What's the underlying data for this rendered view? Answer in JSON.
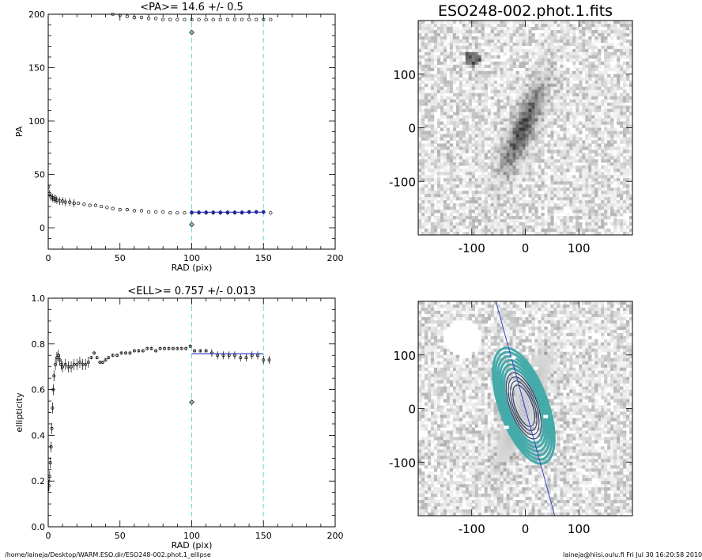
{
  "footer": {
    "path": "/home/laineja/Desktop/WARM.ESO.dir/ESO248-002.phot.1_ellipse",
    "stamp": "laineja@hiisi.oulu.fi  Fri Jul 30 16:20:58 2010"
  },
  "colors": {
    "cyan": "#66dddd",
    "blue": "#2222aa",
    "contour": "#44aaaa",
    "fitline": "#3344cc"
  },
  "chart_data": [
    {
      "type": "scatter",
      "title": "<PA>=  14.6 +/-   0.5",
      "xlabel": "RAD (pix)",
      "ylabel": "PA",
      "xlim": [
        0,
        200
      ],
      "ylim": [
        -20,
        200
      ],
      "xticks": [
        "0",
        "50",
        "100",
        "150",
        "200"
      ],
      "yticks": [
        "0",
        "50",
        "100",
        "150",
        "200"
      ],
      "xtick_values": [
        0,
        50,
        100,
        150,
        200
      ],
      "ytick_values": [
        0,
        50,
        100,
        150,
        200
      ],
      "vlines": [
        100,
        150
      ],
      "series": [
        {
          "x": [
            0,
            1,
            2,
            3,
            4,
            5,
            6,
            8,
            10,
            12,
            15,
            18,
            21,
            25,
            29,
            33,
            37,
            41,
            45,
            50,
            55,
            60,
            65,
            70,
            75,
            80,
            85,
            90,
            95,
            100,
            105,
            110,
            115,
            120,
            125,
            130,
            135,
            140,
            145,
            150,
            155
          ],
          "y": [
            38,
            32,
            29,
            28,
            27,
            27,
            26,
            25,
            25,
            24,
            24,
            23,
            23,
            22,
            21,
            21,
            20,
            19,
            18,
            17,
            17,
            16,
            16,
            15,
            15,
            15,
            14,
            14,
            14,
            14,
            14,
            14,
            14,
            14,
            14,
            14,
            14,
            15,
            15,
            15,
            14
          ]
        },
        {
          "x": [
            45,
            50,
            55,
            60,
            65,
            70,
            75,
            80,
            85,
            90,
            95,
            100,
            105,
            110,
            115,
            120,
            125,
            130,
            135,
            140,
            145,
            150,
            155
          ],
          "y": [
            200,
            199,
            198,
            197,
            197,
            196,
            196,
            195,
            195,
            195,
            195,
            195,
            195,
            195,
            195,
            195,
            195,
            195,
            195,
            195,
            195,
            195,
            195
          ]
        },
        {
          "x": [
            100,
            100
          ],
          "y": [
            3,
            183
          ]
        },
        {
          "x": [
            100,
            105,
            110,
            115,
            120,
            125,
            130,
            135,
            140,
            145,
            150
          ],
          "y": [
            14.6,
            14.6,
            14.6,
            14.6,
            14.6,
            14.6,
            14.6,
            14.6,
            14.6,
            14.6,
            14.6
          ]
        }
      ]
    },
    {
      "type": "scatter",
      "title": "<ELL>= 0.757 +/-  0.013",
      "xlabel": "RAD (pix)",
      "ylabel": "ellipticity",
      "xlim": [
        0,
        200
      ],
      "ylim": [
        0.0,
        1.0
      ],
      "xticks": [
        "0",
        "50",
        "100",
        "150",
        "200"
      ],
      "yticks": [
        "0.0",
        "0.2",
        "0.4",
        "0.6",
        "0.8",
        "1.0"
      ],
      "xtick_values": [
        0,
        50,
        100,
        150,
        200
      ],
      "ytick_values": [
        0.0,
        0.2,
        0.4,
        0.6,
        0.8,
        1.0
      ],
      "vlines": [
        100,
        150
      ],
      "series": [
        {
          "x": [
            0.5,
            1,
            1.5,
            2,
            2.5,
            3,
            3.5,
            4,
            5,
            6,
            7,
            8,
            9,
            10,
            12,
            14,
            16,
            18,
            20,
            22,
            24,
            26,
            28,
            30,
            32,
            34,
            36,
            38,
            40,
            42,
            45,
            48,
            51,
            54,
            57,
            60,
            63,
            66,
            69,
            72,
            75,
            78,
            81,
            84,
            87,
            90,
            93,
            96,
            99,
            102,
            106,
            110,
            114,
            118,
            122,
            126,
            130,
            134,
            138,
            142,
            146,
            150,
            154
          ],
          "y": [
            0.18,
            0.22,
            0.28,
            0.35,
            0.43,
            0.52,
            0.6,
            0.66,
            0.71,
            0.74,
            0.75,
            0.73,
            0.71,
            0.7,
            0.71,
            0.7,
            0.7,
            0.71,
            0.71,
            0.72,
            0.71,
            0.71,
            0.72,
            0.74,
            0.76,
            0.74,
            0.72,
            0.72,
            0.73,
            0.74,
            0.75,
            0.75,
            0.76,
            0.76,
            0.76,
            0.77,
            0.77,
            0.77,
            0.78,
            0.78,
            0.77,
            0.78,
            0.78,
            0.78,
            0.78,
            0.78,
            0.78,
            0.78,
            0.79,
            0.77,
            0.77,
            0.77,
            0.76,
            0.75,
            0.75,
            0.75,
            0.75,
            0.74,
            0.74,
            0.75,
            0.75,
            0.73,
            0.73
          ]
        },
        {
          "x": [
            100
          ],
          "y": [
            0.545
          ]
        },
        {
          "x": [
            100,
            150
          ],
          "y": [
            0.757,
            0.757
          ]
        }
      ]
    },
    {
      "type": "heatmap",
      "title": "ESO248-002.phot.1.fits",
      "xlim": [
        -200,
        200
      ],
      "ylim": [
        -200,
        200
      ],
      "xticks": [
        "-100",
        "0",
        "100"
      ],
      "yticks": [
        "100",
        "0",
        "-100"
      ],
      "xtick_values": [
        -100,
        0,
        100
      ],
      "ytick_values": [
        100,
        0,
        -100
      ]
    },
    {
      "type": "heatmap",
      "title": "",
      "xlim": [
        -200,
        200
      ],
      "ylim": [
        -200,
        200
      ],
      "xticks": [
        "-100",
        "0",
        "100"
      ],
      "yticks": [
        "100",
        "0",
        "-100"
      ],
      "xtick_values": [
        -100,
        0,
        100
      ],
      "ytick_values": [
        100,
        0,
        -100
      ]
    }
  ]
}
